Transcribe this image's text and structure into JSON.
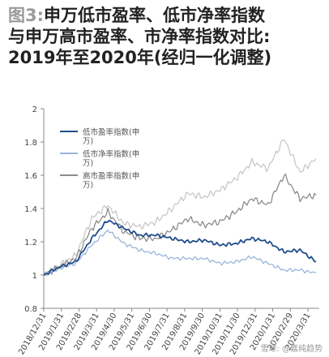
{
  "title": {
    "fig_label": "图3:",
    "line1_rest": "申万低市盈率、低市净率指数",
    "line2": "与申万高市盈率、市净率指数对比:",
    "line3": "2019年至2020年(经归一化调整)"
  },
  "watermark": "雪球: @嘉纯趋势",
  "chart_data": {
    "type": "line",
    "title": "申万低市盈率、低市净率指数与申万高市盈率、市净率指数对比:2019年至2020年(经归一化调整)",
    "xlabel": "",
    "ylabel": "",
    "ylim": [
      0.8,
      2.0
    ],
    "yticks": [
      "0.8",
      "1",
      "1.2",
      "1.4",
      "1.6",
      "1.8",
      "2"
    ],
    "xticks": [
      "2018/12/31",
      "2019/1/31",
      "2019/2/28",
      "2019/3/31",
      "2019/4/30",
      "2019/5/31",
      "2019/6/30",
      "2019/7/31",
      "2019/8/31",
      "2019/9/30",
      "2019/10/31",
      "2019/11/30",
      "2019/12/31",
      "2020/1/31",
      "2020/2/29",
      "2020/3/31"
    ],
    "grid": false,
    "legend_position": "upper-left",
    "colors": {
      "low_pe": "#1f4e8c",
      "low_pb": "#9bb4d9",
      "high_pe": "#8c8c8c",
      "high_pb": "#c8c8c8"
    },
    "series": [
      {
        "name": "低市盈率指数(申万)",
        "color": "#1f4e8c",
        "values": [
          1.0,
          1.05,
          1.08,
          1.22,
          1.33,
          1.28,
          1.24,
          1.24,
          1.22,
          1.2,
          1.21,
          1.18,
          1.19,
          1.22,
          1.2,
          1.14,
          1.15,
          1.08
        ]
      },
      {
        "name": "低市净率指数(申万)",
        "color": "#9bb4d9",
        "values": [
          1.0,
          1.04,
          1.07,
          1.18,
          1.27,
          1.19,
          1.15,
          1.13,
          1.1,
          1.1,
          1.1,
          1.07,
          1.08,
          1.11,
          1.07,
          1.03,
          1.03,
          1.01
        ]
      },
      {
        "name": "高市盈率指数(申万)",
        "color": "#8c8c8c",
        "values": [
          1.0,
          1.05,
          1.1,
          1.28,
          1.38,
          1.26,
          1.22,
          1.22,
          1.27,
          1.34,
          1.3,
          1.32,
          1.38,
          1.46,
          1.42,
          1.6,
          1.46,
          1.48
        ]
      },
      {
        "name": "高市净率指数(申万)",
        "color": "#c8c8c8",
        "values": [
          1.0,
          1.06,
          1.12,
          1.34,
          1.42,
          1.31,
          1.29,
          1.32,
          1.4,
          1.49,
          1.47,
          1.51,
          1.58,
          1.68,
          1.64,
          1.82,
          1.62,
          1.7
        ]
      }
    ],
    "legend": [
      {
        "label_line1": "低市盈率指数(申",
        "label_line2": "万)"
      },
      {
        "label_line1": "低市净率指数(申",
        "label_line2": "万)"
      },
      {
        "label_line1": "高市盈率指数(申",
        "label_line2": "万)"
      }
    ]
  }
}
